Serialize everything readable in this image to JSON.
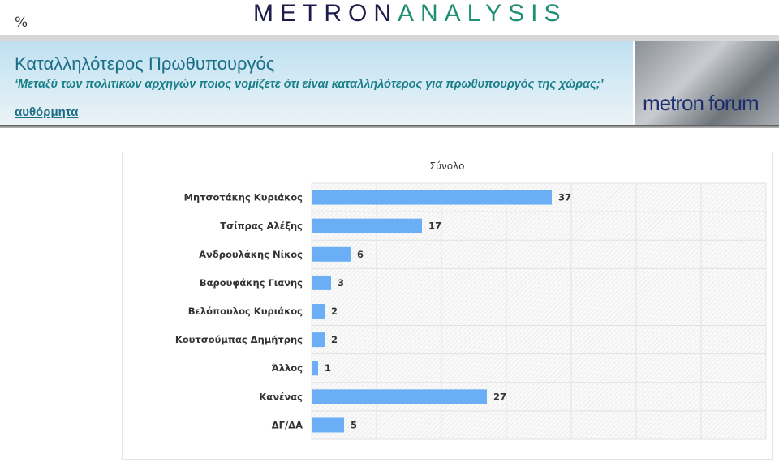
{
  "header": {
    "percent_symbol": "%",
    "logo_part1": "METRON",
    "logo_part2": "ANALYSIS"
  },
  "banner": {
    "title": "Καταλληλότερος Πρωθυπουργός",
    "subtitle": "‘Μεταξύ των πολιτικών αρχηγών ποιος νομίζετε ότι είναι καταλληλότερος για πρωθυπουργός της χώρας;’",
    "link": "αυθόρμητα",
    "forum_logo": "metron forum"
  },
  "colors": {
    "bar": "#6aaef5",
    "title": "#1a6e87"
  },
  "chart_data": {
    "type": "bar",
    "orientation": "horizontal",
    "title": "Σύνολο",
    "categories": [
      "Μητσοτάκης Κυριάκος",
      "Τσίπρας Αλέξης",
      "Ανδρουλάκης Νίκος",
      "Βαρουφάκης Γιανης",
      "Βελόπουλος Κυριάκος",
      "Κουτσούμπας Δημήτρης",
      "Άλλος",
      "Κανένας",
      "ΔΓ/ΔΑ"
    ],
    "values": [
      37,
      17,
      6,
      3,
      2,
      2,
      1,
      27,
      5
    ],
    "xlim": [
      0,
      70
    ],
    "grid": true,
    "data_labels": true
  }
}
